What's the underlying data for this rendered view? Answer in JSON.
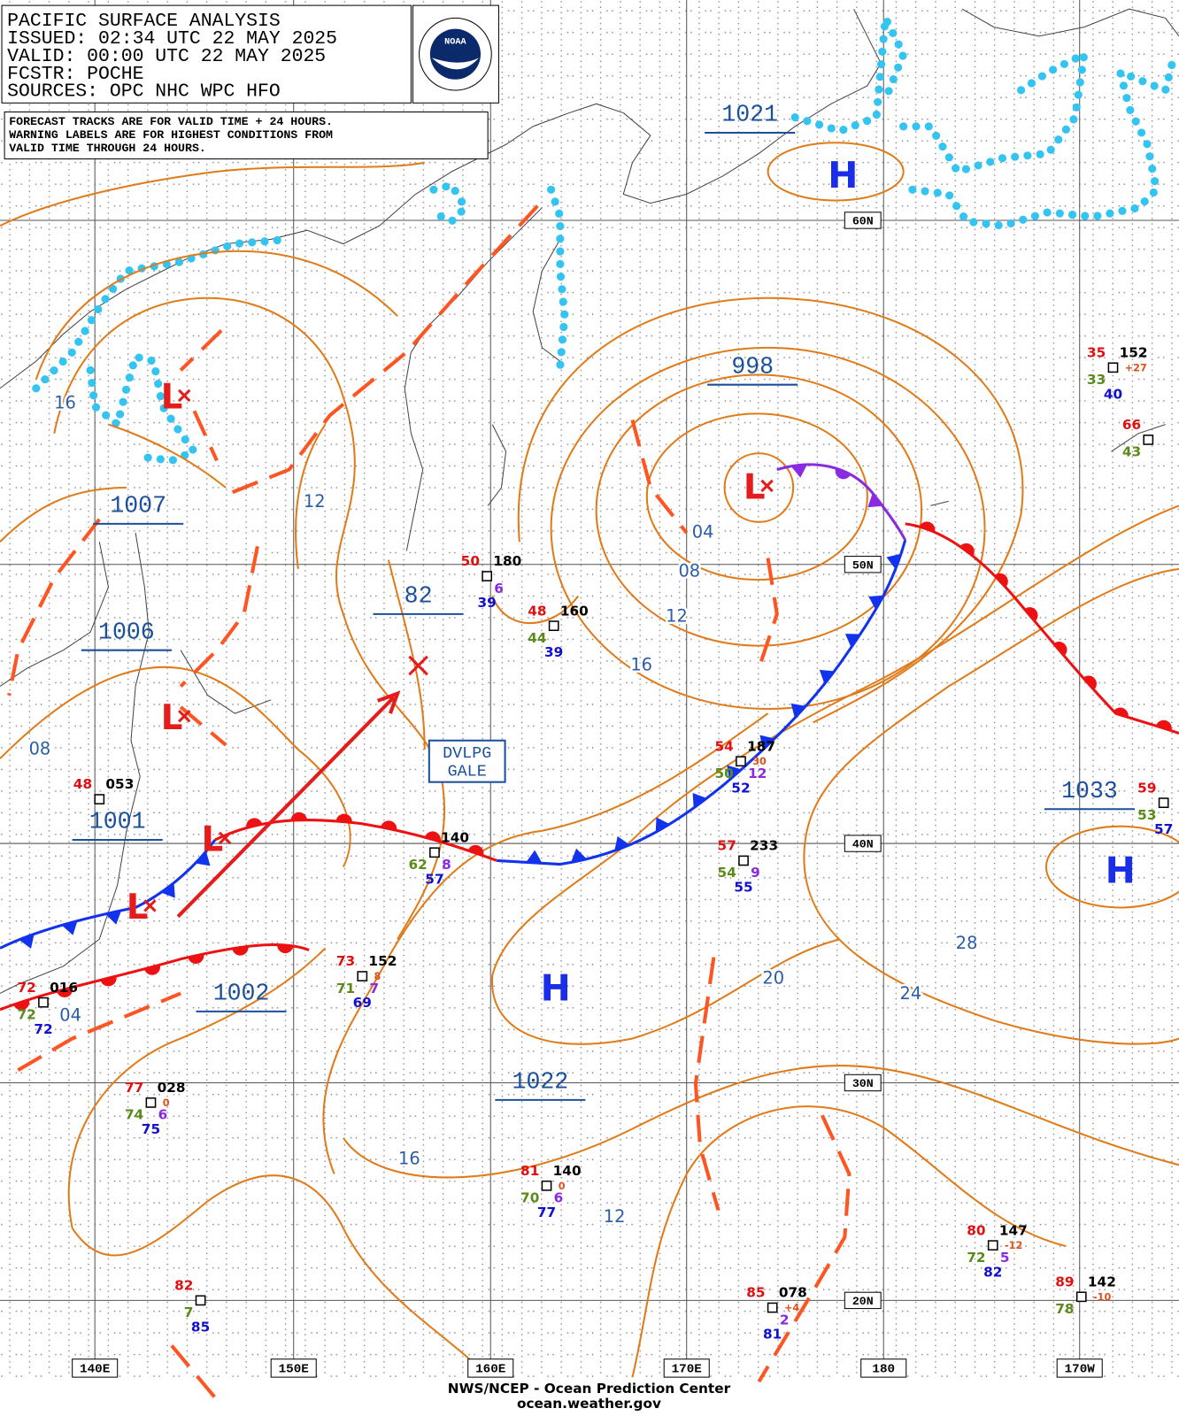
{
  "header": {
    "lines": [
      "PACIFIC SURFACE ANALYSIS",
      "ISSUED: 02:34 UTC 22 MAY 2025",
      "VALID:  00:00 UTC 22 MAY 2025",
      "FCSTR:  POCHE",
      "SOURCES: OPC NHC WPC HFO"
    ]
  },
  "note": {
    "lines": [
      "FORECAST TRACKS ARE FOR VALID TIME + 24 HOURS.",
      "WARNING LABELS ARE FOR HIGHEST CONDITIONS FROM",
      "VALID TIME THROUGH 24 HOURS."
    ]
  },
  "logo": "NOAA",
  "grid": {
    "lat_labels": [
      "60N",
      "50N",
      "40N",
      "30N",
      "20N"
    ],
    "lon_labels": [
      "140E",
      "150E",
      "160E",
      "170E",
      "180",
      "170W"
    ]
  },
  "centers": [
    {
      "symbol": "H"
    },
    {
      "symbol": "L"
    },
    {
      "symbol": "L"
    },
    {
      "symbol": "L"
    },
    {
      "symbol": "L"
    },
    {
      "symbol": "L"
    },
    {
      "symbol": "H"
    },
    {
      "symbol": "H"
    }
  ],
  "pressure_labels": [
    "1021",
    "998",
    "1007",
    "1006",
    "1001",
    "82",
    "1002",
    "1022",
    "1033"
  ],
  "isobar_labels": [
    "16",
    "12",
    "04",
    "08",
    "12",
    "16",
    "08",
    "28",
    "20",
    "24",
    "04",
    "16",
    "12"
  ],
  "warning": {
    "lines": [
      "DVLPG",
      "GALE"
    ]
  },
  "stations": [
    {
      "temp": "50",
      "pressure": "180",
      "sst": "39",
      "wave": "6"
    },
    {
      "temp": "48",
      "pressure": "160",
      "dewpoint": "44",
      "sst": "39"
    },
    {
      "temp": "54",
      "pressure": "187",
      "dewpoint": "50",
      "sst": "52",
      "wave": "12",
      "tendency": "30"
    },
    {
      "pressure": "140",
      "dewpoint": "62",
      "sst": "57",
      "wave": "8"
    },
    {
      "temp": "57",
      "pressure": "233",
      "dewpoint": "54",
      "sst": "55",
      "wave": "9"
    },
    {
      "temp": "73",
      "pressure": "152",
      "dewpoint": "71",
      "sst": "69",
      "wave": "7",
      "tendency": "8"
    },
    {
      "temp": "77",
      "pressure": "028",
      "dewpoint": "74",
      "sst": "75",
      "wave": "6",
      "tendency": "0"
    },
    {
      "temp": "81",
      "pressure": "140",
      "dewpoint": "70",
      "sst": "77",
      "wave": "6",
      "tendency": "0"
    },
    {
      "temp": "82",
      "dewpoint": "7",
      "sst": "85"
    },
    {
      "temp": "85",
      "pressure": "078",
      "sst": "81",
      "wave": "2",
      "tendency": "+4"
    },
    {
      "temp": "80",
      "pressure": "147",
      "dewpoint": "72",
      "sst": "82",
      "wave": "5",
      "tendency": "-12"
    },
    {
      "temp": "89",
      "pressure": "142",
      "dewpoint": "78",
      "tendency": "-10"
    },
    {
      "temp": "35",
      "pressure": "152",
      "dewpoint": "33",
      "sst": "40",
      "tendency": "+27"
    },
    {
      "temp": "66",
      "dewpoint": "43"
    },
    {
      "temp": "59",
      "dewpoint": "53",
      "sst": "57"
    },
    {
      "temp": "72",
      "pressure": "016",
      "dewpoint": "72",
      "sst": "72"
    },
    {
      "temp": "48",
      "pressure": "053"
    }
  ],
  "footer": {
    "lines": [
      "NWS/NCEP - Ocean Prediction Center",
      "ocean.weather.gov"
    ]
  }
}
